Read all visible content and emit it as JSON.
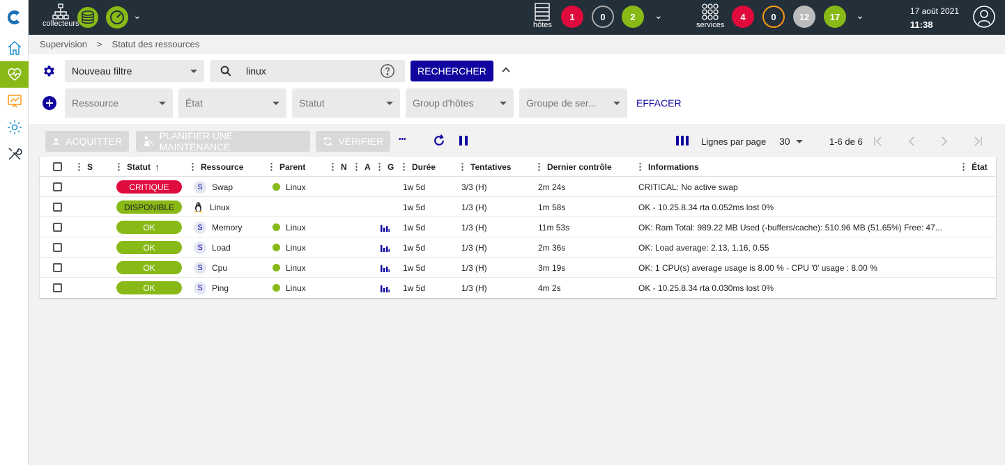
{
  "header": {
    "collectors_label": "collecteurs",
    "hosts_label": "hôtes",
    "services_label": "services",
    "hosts_counts": [
      "1",
      "0",
      "2"
    ],
    "services_counts": [
      "4",
      "0",
      "12",
      "17"
    ],
    "date": "17 août 2021",
    "time": "11:38",
    "colors": {
      "critical": "#e00b3d",
      "ok": "#88b917",
      "warning": "#ff9a13",
      "bar": "#232f39",
      "primary": "#10069f"
    }
  },
  "breadcrumb": [
    "Supervision",
    "Statut des ressources"
  ],
  "filters": {
    "filter_select": "Nouveau filtre",
    "search_value": "linux",
    "search_button": "RECHERCHER",
    "resource": "Ressource",
    "state": "État",
    "status": "Statut",
    "host_group": "Group d'hôtes",
    "service_group": "Groupe de ser...",
    "clear": "EFFACER"
  },
  "toolbar": {
    "acknowledge": "ACQUITTER",
    "downtime": "PLANIFIER UNE MAINTENANCE",
    "check": "VÉRIFIER",
    "more": "•••",
    "rows_per_page_label": "Lignes par page",
    "rows_per_page": "30",
    "range": "1-6 de 6"
  },
  "columns": {
    "s": "S",
    "status": "Statut",
    "resource": "Ressource",
    "parent": "Parent",
    "n": "N",
    "a": "A",
    "g": "G",
    "duration": "Durée",
    "tries": "Tentatives",
    "last_check": "Dernier contrôle",
    "information": "Informations",
    "state": "État"
  },
  "rows": [
    {
      "status": "CRITIQUE",
      "type": "S",
      "resource": "Swap",
      "parent": "Linux",
      "graph": false,
      "duration": "1w 5d",
      "tries": "3/3 (H)",
      "last_check": "2m 24s",
      "info": "CRITICAL: No active swap"
    },
    {
      "status": "DISPONIBLE",
      "type": "host",
      "resource": "Linux",
      "parent": "",
      "graph": false,
      "duration": "1w 5d",
      "tries": "1/3 (H)",
      "last_check": "1m 58s",
      "info": "OK - 10.25.8.34 rta 0.052ms lost 0%"
    },
    {
      "status": "OK",
      "type": "S",
      "resource": "Memory",
      "parent": "Linux",
      "graph": true,
      "duration": "1w 5d",
      "tries": "1/3 (H)",
      "last_check": "11m 53s",
      "info": "OK: Ram Total: 989.22 MB Used (-buffers/cache): 510.96 MB (51.65%) Free: 47..."
    },
    {
      "status": "OK",
      "type": "S",
      "resource": "Load",
      "parent": "Linux",
      "graph": true,
      "duration": "1w 5d",
      "tries": "1/3 (H)",
      "last_check": "2m 36s",
      "info": "OK: Load average: 2.13, 1.16, 0.55"
    },
    {
      "status": "OK",
      "type": "S",
      "resource": "Cpu",
      "parent": "Linux",
      "graph": true,
      "duration": "1w 5d",
      "tries": "1/3 (H)",
      "last_check": "3m 19s",
      "info": "OK: 1 CPU(s) average usage is 8.00 % - CPU '0' usage : 8.00 %"
    },
    {
      "status": "OK",
      "type": "S",
      "resource": "Ping",
      "parent": "Linux",
      "graph": true,
      "duration": "1w 5d",
      "tries": "1/3 (H)",
      "last_check": "4m 2s",
      "info": "OK - 10.25.8.34 rta 0.030ms lost 0%"
    }
  ]
}
